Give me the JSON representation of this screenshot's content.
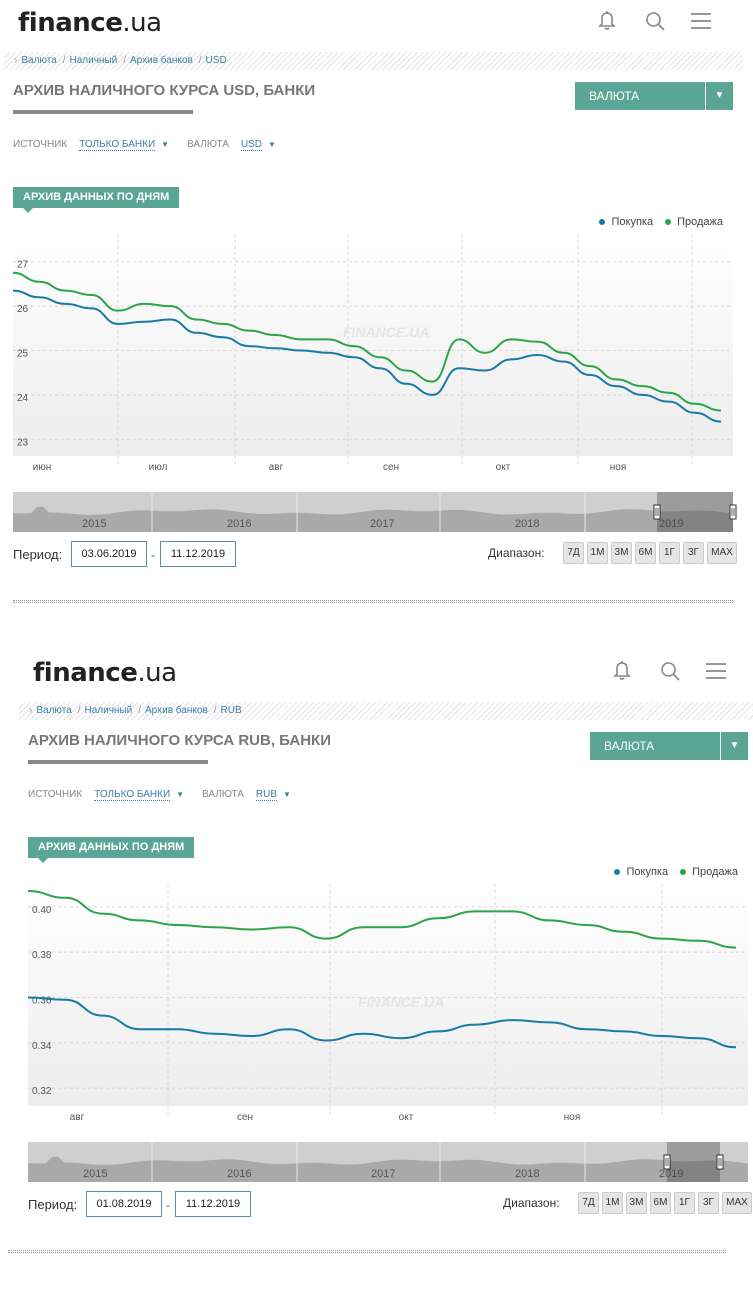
{
  "panels": [
    {
      "logo": {
        "bold": "fi",
        "rest": "nance",
        "suffix": ".ua"
      },
      "breadcrumb": [
        "Валюта",
        "Наличный",
        "Архив банков",
        "USD"
      ],
      "page_title": "АРХИВ НАЛИЧНОГО КУРСА USD, БАНКИ",
      "currency_button": "ВАЛЮТА",
      "currency_button_arrow": "▼",
      "filters": {
        "source_label": "ИСТОЧНИК",
        "source_value": "ТОЛЬКО БАНКИ",
        "currency_label": "ВАЛЮТА",
        "currency_value": "USD",
        "arrow": "▼"
      },
      "section_tag": "АРХИВ ДАННЫХ ПО ДНЯМ",
      "legend": {
        "buy": "Покупка",
        "sell": "Продажа"
      },
      "watermark": "FINANCE.UA",
      "navigator_years": [
        "2015",
        "2016",
        "2017",
        "2018",
        "2019"
      ],
      "period_label": "Период:",
      "date_from": "03.06.2019",
      "date_to": "11.12.2019",
      "date_sep": "-",
      "range_label": "Диапазон:",
      "range_buttons": [
        "7Д",
        "1М",
        "3М",
        "6М",
        "1Г",
        "3Г",
        "MAX"
      ],
      "colors": {
        "buy": "#1a7aa6",
        "sell": "#2ca44a",
        "accent": "#5aa595"
      }
    },
    {
      "logo": {
        "bold": "fi",
        "rest": "nance",
        "suffix": ".ua"
      },
      "breadcrumb": [
        "Валюта",
        "Наличный",
        "Архив банков",
        "RUB"
      ],
      "page_title": "АРХИВ НАЛИЧНОГО КУРСА RUB, БАНКИ",
      "currency_button": "ВАЛЮТА",
      "currency_button_arrow": "▼",
      "filters": {
        "source_label": "ИСТОЧНИК",
        "source_value": "ТОЛЬКО БАНКИ",
        "currency_label": "ВАЛЮТА",
        "currency_value": "RUB",
        "arrow": "▼"
      },
      "section_tag": "АРХИВ ДАННЫХ ПО ДНЯМ",
      "legend": {
        "buy": "Покупка",
        "sell": "Продажа"
      },
      "watermark": "FINANCE.UA",
      "navigator_years": [
        "2015",
        "2016",
        "2017",
        "2018",
        "2019"
      ],
      "period_label": "Период:",
      "date_from": "01.08.2019",
      "date_to": "11.12.2019",
      "date_sep": "-",
      "range_label": "Диапазон:",
      "range_buttons": [
        "7Д",
        "1М",
        "3М",
        "6М",
        "1Г",
        "3Г",
        "MAX"
      ],
      "colors": {
        "buy": "#1a7aa6",
        "sell": "#2ca44a",
        "accent": "#5aa595"
      }
    }
  ],
  "chart_data": [
    {
      "type": "line",
      "x_labels": [
        "июн",
        "июл",
        "авг",
        "сен",
        "окт",
        "ноя"
      ],
      "y_ticks": [
        23,
        24,
        25,
        26,
        27
      ],
      "ylim": [
        22.85,
        27.85
      ],
      "x": [
        "2019-06-03",
        "2019-06-10",
        "2019-06-17",
        "2019-06-24",
        "2019-07-01",
        "2019-07-08",
        "2019-07-15",
        "2019-07-22",
        "2019-07-29",
        "2019-08-05",
        "2019-08-12",
        "2019-08-19",
        "2019-08-26",
        "2019-09-02",
        "2019-09-09",
        "2019-09-16",
        "2019-09-23",
        "2019-09-30",
        "2019-10-07",
        "2019-10-14",
        "2019-10-21",
        "2019-10-28",
        "2019-11-04",
        "2019-11-11",
        "2019-11-18",
        "2019-11-25",
        "2019-12-02",
        "2019-12-09"
      ],
      "series": [
        {
          "name": "Покупка",
          "values": [
            26.35,
            26.2,
            26.05,
            25.95,
            25.6,
            25.65,
            25.7,
            25.4,
            25.3,
            25.1,
            25.05,
            25.0,
            24.95,
            24.85,
            24.6,
            24.25,
            24.0,
            24.6,
            24.55,
            24.8,
            24.9,
            24.75,
            24.45,
            24.2,
            24.0,
            23.85,
            23.6,
            23.4
          ]
        },
        {
          "name": "Продажа",
          "values": [
            26.75,
            26.55,
            26.35,
            26.25,
            25.9,
            26.05,
            26.0,
            25.7,
            25.6,
            25.45,
            25.35,
            25.25,
            25.25,
            25.1,
            24.85,
            24.55,
            24.3,
            25.25,
            24.95,
            25.25,
            25.2,
            24.95,
            24.65,
            24.35,
            24.2,
            24.05,
            23.8,
            23.65
          ]
        }
      ]
    },
    {
      "type": "line",
      "x_labels": [
        "авг",
        "сен",
        "окт",
        "ноя"
      ],
      "y_ticks": [
        0.32,
        0.34,
        0.36,
        0.38,
        0.4
      ],
      "ylim": [
        0.3165,
        0.4145
      ],
      "x": [
        "2019-08-01",
        "2019-08-08",
        "2019-08-15",
        "2019-08-22",
        "2019-08-29",
        "2019-09-05",
        "2019-09-12",
        "2019-09-19",
        "2019-09-26",
        "2019-10-03",
        "2019-10-10",
        "2019-10-17",
        "2019-10-24",
        "2019-10-31",
        "2019-11-07",
        "2019-11-14",
        "2019-11-21",
        "2019-11-28",
        "2019-12-05",
        "2019-12-11"
      ],
      "series": [
        {
          "name": "Покупка",
          "values": [
            0.36,
            0.359,
            0.352,
            0.346,
            0.346,
            0.344,
            0.343,
            0.346,
            0.341,
            0.344,
            0.342,
            0.345,
            0.348,
            0.35,
            0.349,
            0.346,
            0.345,
            0.343,
            0.342,
            0.338
          ]
        },
        {
          "name": "Продажа",
          "values": [
            0.407,
            0.404,
            0.397,
            0.394,
            0.392,
            0.391,
            0.39,
            0.391,
            0.386,
            0.391,
            0.391,
            0.395,
            0.398,
            0.398,
            0.394,
            0.392,
            0.389,
            0.386,
            0.385,
            0.382
          ]
        }
      ]
    }
  ]
}
